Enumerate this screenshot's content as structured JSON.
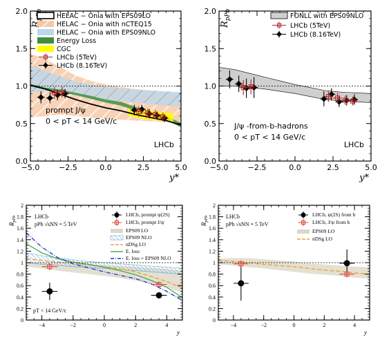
{
  "chart_data": [
    {
      "type": "line",
      "xlabel": "y*",
      "ylabel": "RpPb",
      "xlim": [
        -5,
        5
      ],
      "ylim": [
        0,
        2
      ],
      "xticks": [
        "−5.0",
        "−2.5",
        "0.0",
        "2.5",
        "5.0"
      ],
      "yticks": [
        "0.0",
        "0.5",
        "1.0",
        "1.5",
        "2.0"
      ],
      "watermark": "LHCb",
      "annotations": [
        "prompt J/ψ",
        "0 < pT < 14 GeV/c"
      ],
      "legend_position": "top-left",
      "legend": [
        "HELAC − Onia with EPS09LO",
        "HELAC − Onia with nCTEQ15",
        "HELAC − Onia with EPS09NLO",
        "Energy Loss",
        "CGC",
        "LHCb (5TeV)",
        "LHCb (8.16TeV)"
      ],
      "colors": {
        "nCTEQ15": "#f5c7a4",
        "EPS09NLO": "#bdd7ea",
        "EnergyLoss": "#3f8f3f",
        "CGC": "#ffff00",
        "LHCb5": "#b22222"
      },
      "bands": [
        {
          "name": "HELAC − Onia with nCTEQ15",
          "x": [
            -5,
            -4,
            -3,
            -2,
            -1,
            0,
            1,
            2,
            3,
            4,
            5
          ],
          "lo": [
            0.58,
            0.6,
            0.62,
            0.6,
            0.58,
            0.56,
            0.55,
            0.54,
            0.53,
            0.52,
            0.52
          ],
          "hi": [
            1.43,
            1.36,
            1.25,
            1.14,
            1.07,
            1.02,
            0.99,
            0.96,
            0.94,
            0.92,
            0.9
          ]
        },
        {
          "name": "HELAC − Onia with EPS09NLO",
          "x": [
            -5,
            -4,
            -3,
            -2,
            -1,
            0,
            1,
            2,
            3,
            4,
            5
          ],
          "lo": [
            0.92,
            0.93,
            0.92,
            0.88,
            0.84,
            0.82,
            0.8,
            0.78,
            0.76,
            0.74,
            0.73
          ],
          "hi": [
            1.28,
            1.2,
            1.13,
            1.06,
            1.02,
            0.99,
            0.97,
            0.95,
            0.94,
            0.93,
            0.92
          ]
        },
        {
          "name": "Energy Loss",
          "x": [
            -5,
            -4,
            -3,
            -2,
            -1,
            0,
            1,
            2,
            3,
            4,
            5
          ],
          "lo": [
            1.0,
            0.95,
            0.92,
            0.88,
            0.83,
            0.78,
            0.74,
            0.67,
            0.61,
            0.55,
            0.45
          ],
          "hi": [
            1.03,
            0.98,
            0.95,
            0.91,
            0.87,
            0.82,
            0.79,
            0.72,
            0.66,
            0.6,
            0.51
          ]
        },
        {
          "name": "CGC",
          "x": [
            1.5,
            2,
            2.5,
            3,
            3.5,
            4,
            4.5
          ],
          "lo": [
            0.6,
            0.58,
            0.56,
            0.55,
            0.54,
            0.53,
            0.52
          ],
          "hi": [
            0.7,
            0.69,
            0.68,
            0.67,
            0.66,
            0.65,
            0.64
          ]
        }
      ],
      "curves": [
        {
          "name": "HELAC − Onia with EPS09LO",
          "x": [
            -5,
            -4,
            -3,
            -2,
            -1,
            0,
            1,
            2,
            3,
            4,
            5
          ],
          "y": [
            1.01,
            0.96,
            0.89,
            0.82,
            0.76,
            0.71,
            0.67,
            0.62,
            0.58,
            0.54,
            0.48
          ]
        },
        {
          "name": "dotted_line",
          "x": [
            -5,
            5
          ],
          "y": [
            1.0,
            1.0
          ]
        }
      ],
      "series": [
        {
          "name": "LHCb (8.16TeV)",
          "x": [
            -4.3,
            -3.7,
            -3.2,
            -2.7,
            1.9,
            2.4,
            2.9,
            3.4,
            3.9
          ],
          "y": [
            0.85,
            0.84,
            0.88,
            0.9,
            0.68,
            0.69,
            0.63,
            0.61,
            0.57
          ],
          "xerr": 0.25,
          "yerr": [
            0.08,
            0.07,
            0.07,
            0.06,
            0.07,
            0.06,
            0.06,
            0.05,
            0.05
          ]
        },
        {
          "name": "LHCb (5TeV)",
          "x": [
            -3.4,
            -2.9,
            2.2,
            2.8,
            3.3,
            3.8
          ],
          "y": [
            0.91,
            0.92,
            0.66,
            0.64,
            0.62,
            0.59
          ],
          "xerr": 0.3,
          "yerr": [
            0.08,
            0.07,
            0.07,
            0.06,
            0.06,
            0.06
          ]
        }
      ]
    },
    {
      "type": "line",
      "xlabel": "y*",
      "ylabel": "RpPb",
      "xlim": [
        -5,
        5
      ],
      "ylim": [
        0,
        2
      ],
      "xticks": [
        "−5.0",
        "−2.5",
        "0.0",
        "2.5",
        "5.0"
      ],
      "yticks": [
        "0.0",
        "0.5",
        "1.0",
        "1.5",
        "2.0"
      ],
      "watermark": "LHCb",
      "annotations": [
        "J/ψ -from-b-hadrons",
        "0 < pT < 14 GeV/c"
      ],
      "legend_position": "top-right",
      "legend": [
        "FONLL with EPS09NLO",
        "LHCb (5TeV)",
        "LHCb (8.16TeV)"
      ],
      "colors": {
        "FONLL": "#cfcfcf",
        "LHCb5": "#b22222"
      },
      "bands": [
        {
          "name": "FONLL with EPS09NLO",
          "x": [
            -5,
            -4,
            -3,
            -2,
            -1,
            0,
            1,
            2,
            3,
            4,
            5
          ],
          "lo": [
            1.0,
            1.0,
            0.98,
            0.96,
            0.93,
            0.9,
            0.86,
            0.82,
            0.8,
            0.79,
            0.78
          ],
          "hi": [
            1.25,
            1.22,
            1.17,
            1.12,
            1.07,
            1.02,
            0.98,
            0.94,
            0.92,
            0.91,
            0.9
          ]
        }
      ],
      "curves": [
        {
          "name": "dotted_line",
          "x": [
            -5,
            5
          ],
          "y": [
            1.0,
            1.0
          ]
        }
      ],
      "series": [
        {
          "name": "LHCb (8.16TeV)",
          "x": [
            -4.3,
            -3.7,
            -3.2,
            -2.7,
            1.9,
            2.4,
            2.9,
            3.4,
            3.9
          ],
          "y": [
            1.09,
            1.03,
            0.97,
            0.98,
            0.83,
            0.89,
            0.79,
            0.81,
            0.82
          ],
          "xerr": 0.25,
          "yerr": [
            0.12,
            0.11,
            0.13,
            0.14,
            0.1,
            0.08,
            0.07,
            0.07,
            0.07
          ]
        },
        {
          "name": "LHCb (5TeV)",
          "x": [
            -3.4,
            -2.9,
            2.2,
            2.8,
            3.3,
            3.8
          ],
          "y": [
            0.98,
            0.99,
            0.86,
            0.84,
            0.81,
            0.8
          ],
          "xerr": 0.3,
          "yerr": [
            0.1,
            0.1,
            0.07,
            0.07,
            0.06,
            0.06
          ]
        }
      ]
    },
    {
      "type": "line",
      "xlabel": "y",
      "ylabel": "RpPb",
      "xlim": [
        -5,
        5
      ],
      "ylim": [
        0,
        2
      ],
      "xticks": [
        "−4",
        "−2",
        "0",
        "2",
        "4"
      ],
      "yticks": [
        "0",
        "0.2",
        "0.4",
        "0.6",
        "0.8",
        "1",
        "1.2",
        "1.4",
        "1.6",
        "1.8",
        "2"
      ],
      "annotations": [
        "LHCb",
        "pPb √sNN = 5 TeV",
        "pT < 14 GeV/c"
      ],
      "legend_position": "top-right",
      "legend": [
        "LHCb, prompt ψ(2S)",
        "LHCb, prompt J/ψ",
        "EPS09 LO",
        "EPS09 NLO",
        "nDSg LO",
        "E. loss",
        "E. loss + EPS09 NLO"
      ],
      "colors": {
        "psi2S": "#000000",
        "JpsiPrompt": "#e0433a",
        "EPS09LO": "#dcd8c8",
        "EPS09NLO": "#8fc3e6",
        "nDSgLO": "#f2a030",
        "Eloss": "#4caf50",
        "ElossEPS": "#1f2fd0"
      },
      "bands": [
        {
          "name": "EPS09 LO",
          "x": [
            -5,
            -4,
            -3,
            -2,
            -1,
            0,
            1,
            2,
            3,
            4,
            5
          ],
          "lo": [
            0.93,
            0.9,
            0.86,
            0.83,
            0.8,
            0.77,
            0.73,
            0.69,
            0.63,
            0.57,
            0.47
          ],
          "hi": [
            1.0,
            1.0,
            0.99,
            0.98,
            0.97,
            0.96,
            0.94,
            0.93,
            0.91,
            0.89,
            0.86
          ]
        },
        {
          "name": "EPS09 NLO",
          "x": [
            -5,
            -4,
            -3,
            -2,
            -1,
            0,
            1,
            2,
            3,
            4,
            5
          ],
          "lo": [
            1.0,
            0.97,
            0.95,
            0.93,
            0.91,
            0.9,
            0.88,
            0.86,
            0.84,
            0.82,
            0.8
          ],
          "hi": [
            1.17,
            1.12,
            1.08,
            1.05,
            1.02,
            1.0,
            0.98,
            0.96,
            0.94,
            0.92,
            0.9
          ]
        }
      ],
      "curves": [
        {
          "name": "nDSg LO",
          "x": [
            -5,
            -4,
            -3,
            -2,
            -1,
            0,
            1,
            2,
            3,
            4,
            5
          ],
          "y": [
            1.07,
            1.04,
            1.01,
            0.99,
            0.96,
            0.93,
            0.89,
            0.84,
            0.76,
            0.67,
            0.56
          ]
        },
        {
          "name": "E. loss",
          "x": [
            -5,
            -4,
            -3,
            -2,
            -1,
            0,
            1,
            2,
            3,
            4,
            5
          ],
          "y": [
            1.33,
            1.17,
            1.07,
            1.01,
            0.97,
            0.92,
            0.86,
            0.79,
            0.69,
            0.57,
            0.39
          ]
        },
        {
          "name": "E. loss + EPS09 NLO",
          "x": [
            -5,
            -4,
            -3,
            -2,
            -1,
            0,
            1,
            2,
            3,
            4,
            5
          ],
          "y": [
            1.52,
            1.27,
            1.09,
            0.98,
            0.91,
            0.84,
            0.78,
            0.72,
            0.63,
            0.5,
            0.34
          ]
        },
        {
          "name": "dotted_line",
          "x": [
            -5,
            5
          ],
          "y": [
            1.0,
            1.0
          ]
        }
      ],
      "series": [
        {
          "name": "LHCb, prompt ψ(2S)",
          "x": [
            -3.5,
            3.5
          ],
          "y": [
            0.5,
            0.43
          ],
          "xerr": 0.5,
          "yerr": [
            0.15,
            0.05
          ]
        },
        {
          "name": "LHCb, prompt J/ψ",
          "x": [
            -3.5,
            3.5
          ],
          "y": [
            0.93,
            0.62
          ],
          "xerr": 0.5,
          "yerr": [
            0.06,
            0.05
          ]
        }
      ]
    },
    {
      "type": "line",
      "xlabel": "y",
      "ylabel": "RpPb",
      "xlim": [
        -5,
        5
      ],
      "ylim": [
        0,
        2
      ],
      "xticks": [
        "−4",
        "−2",
        "0",
        "2",
        "4"
      ],
      "yticks": [
        "0",
        "0.2",
        "0.4",
        "0.6",
        "0.8",
        "1",
        "1.2",
        "1.4",
        "1.6",
        "1.8",
        "2"
      ],
      "annotations": [
        "LHCb",
        "pPb √sNN = 5 TeV"
      ],
      "legend_position": "top-right",
      "legend": [
        "LHCb, ψ(2S) from b",
        "LHCb, J/ψ from b",
        "EPS09 LO",
        "nDSg LO"
      ],
      "colors": {
        "psi2S": "#000000",
        "JpsiB": "#e0433a",
        "EPS09LO": "#dcd8c8",
        "nDSgLO": "#f2a030"
      },
      "bands": [
        {
          "name": "EPS09 LO",
          "x": [
            -5,
            -4,
            -3,
            -2,
            -1,
            0,
            1,
            2,
            3,
            4,
            5
          ],
          "lo": [
            0.97,
            0.95,
            0.92,
            0.9,
            0.87,
            0.84,
            0.81,
            0.79,
            0.77,
            0.74,
            0.72
          ],
          "hi": [
            1.07,
            1.08,
            1.08,
            1.06,
            1.04,
            1.02,
            0.99,
            0.97,
            0.95,
            0.93,
            0.92
          ]
        }
      ],
      "curves": [
        {
          "name": "nDSg LO",
          "x": [
            -5,
            -4,
            -3,
            -2,
            -1,
            0,
            1,
            2,
            3,
            4,
            5
          ],
          "y": [
            1.04,
            1.02,
            1.0,
            0.97,
            0.95,
            0.93,
            0.9,
            0.87,
            0.85,
            0.82,
            0.8
          ]
        },
        {
          "name": "dotted_line",
          "x": [
            -5,
            5
          ],
          "y": [
            1.0,
            1.0
          ]
        }
      ],
      "series": [
        {
          "name": "LHCb, ψ(2S) from b",
          "x": [
            -3.5,
            3.5
          ],
          "y": [
            0.64,
            0.99
          ],
          "xerr": 0.5,
          "yerr": [
            0.3,
            0.24
          ]
        },
        {
          "name": "LHCb, J/ψ from b",
          "x": [
            -3.5,
            3.5
          ],
          "y": [
            0.98,
            0.8
          ],
          "xerr": 0.5,
          "yerr": [
            0.06,
            0.05
          ]
        }
      ]
    }
  ]
}
